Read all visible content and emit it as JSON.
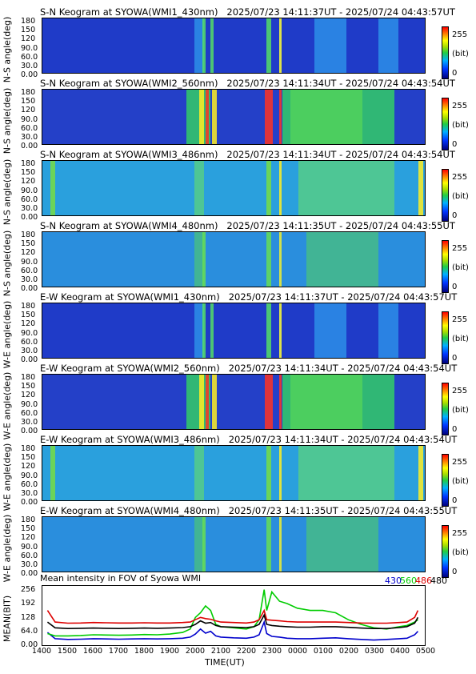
{
  "keograms": [
    {
      "title": "S-N Keogram at SYOWA(WMI1_430nm)",
      "time_range": "2025/07/23 14:11:37UT - 2025/07/24 04:43:57UT",
      "ylabel": "N-S angle(deg)",
      "variant": "blue"
    },
    {
      "title": "S-N Keogram at SYOWA(WMI2_560nm)",
      "time_range": "2025/07/23 14:11:34UT - 2025/07/24 04:43:54UT",
      "ylabel": "N-S angle(deg)",
      "variant": "bright"
    },
    {
      "title": "S-N Keogram at SYOWA(WMI3_486nm)",
      "time_range": "2025/07/23 14:11:34UT - 2025/07/24 04:43:54UT",
      "ylabel": "N-S angle(deg)",
      "variant": "cyan"
    },
    {
      "title": "S-N Keogram at SYOWA(WMI4_480nm)",
      "time_range": "2025/07/23 14:11:35UT - 2025/07/24 04:43:55UT",
      "ylabel": "N-S angle(deg)",
      "variant": "teal"
    },
    {
      "title": "E-W Keogram at SYOWA(WMI1_430nm)",
      "time_range": "2025/07/23 14:11:37UT - 2025/07/24 04:43:57UT",
      "ylabel": "W-E angle(deg)",
      "variant": "blue"
    },
    {
      "title": "E-W Keogram at SYOWA(WMI2_560nm)",
      "time_range": "2025/07/23 14:11:34UT - 2025/07/24 04:43:54UT",
      "ylabel": "W-E angle(deg)",
      "variant": "bright"
    },
    {
      "title": "E-W Keogram at SYOWA(WMI3_486nm)",
      "time_range": "2025/07/23 14:11:34UT - 2025/07/24 04:43:54UT",
      "ylabel": "W-E angle(deg)",
      "variant": "cyan"
    },
    {
      "title": "E-W Keogram at SYOWA(WMI4_480nm)",
      "time_range": "2025/07/23 14:11:35UT - 2025/07/24 04:43:55UT",
      "ylabel": "W-E angle(deg)",
      "variant": "teal"
    }
  ],
  "angle_ticks": [
    "180",
    "150",
    "120",
    "90.0",
    "60.0",
    "30.0",
    "0.00"
  ],
  "colorbar": {
    "max": "255",
    "unit": "(bit)",
    "min": "0"
  },
  "mean_panel": {
    "title": "Mean intensity in FOV of Syowa WMI",
    "legend": [
      {
        "label": "430",
        "color": "#0000cc"
      },
      {
        "label": "560",
        "color": "#00cc00"
      },
      {
        "label": "486",
        "color": "#dd0000"
      },
      {
        "label": "480",
        "color": "#000000"
      }
    ],
    "ylabel": "MEAN(BIT)",
    "xlabel": "TIME(UT)"
  },
  "chart_data": {
    "type": "line",
    "title": "Mean intensity in FOV of Syowa WMI",
    "xlabel": "TIME(UT)",
    "ylabel": "MEAN(BIT)",
    "x_ticks": [
      "1400",
      "1500",
      "1600",
      "1700",
      "1800",
      "1900",
      "2000",
      "2100",
      "2200",
      "2300",
      "0000",
      "0100",
      "0200",
      "0300",
      "0400",
      "0500"
    ],
    "y_ticks": [
      "256",
      "192",
      "128",
      "64.0",
      "0.00"
    ],
    "ylim": [
      0,
      256
    ],
    "x_hours": [
      14.2,
      14.5,
      15,
      15.5,
      16,
      16.5,
      17,
      17.5,
      18,
      18.5,
      19,
      19.5,
      19.8,
      20,
      20.2,
      20.4,
      20.6,
      20.8,
      21,
      21.5,
      22,
      22.3,
      22.5,
      22.7,
      22.8,
      23,
      23.3,
      23.6,
      24,
      24.5,
      25,
      25.5,
      26,
      26.5,
      27,
      27.5,
      28,
      28.3,
      28.6,
      28.73
    ],
    "series": [
      {
        "name": "430",
        "color": "#0000cc",
        "values": [
          55,
          28,
          25,
          26,
          28,
          27,
          26,
          27,
          28,
          27,
          28,
          30,
          35,
          48,
          70,
          52,
          60,
          40,
          35,
          32,
          30,
          35,
          45,
          100,
          50,
          38,
          35,
          30,
          28,
          28,
          30,
          32,
          28,
          25,
          22,
          25,
          28,
          30,
          45,
          60
        ]
      },
      {
        "name": "560",
        "color": "#00cc00",
        "values": [
          50,
          40,
          40,
          42,
          45,
          44,
          43,
          44,
          46,
          45,
          48,
          55,
          70,
          120,
          140,
          170,
          150,
          90,
          80,
          75,
          70,
          80,
          110,
          240,
          150,
          230,
          190,
          180,
          160,
          150,
          150,
          140,
          110,
          90,
          75,
          70,
          80,
          85,
          100,
          110
        ]
      },
      {
        "name": "486",
        "color": "#dd0000",
        "values": [
          150,
          100,
          95,
          96,
          98,
          97,
          96,
          96,
          97,
          96,
          96,
          98,
          100,
          110,
          120,
          115,
          112,
          105,
          100,
          98,
          96,
          100,
          110,
          150,
          110,
          108,
          105,
          102,
          100,
          100,
          100,
          100,
          98,
          96,
          95,
          95,
          98,
          100,
          120,
          150
        ]
      },
      {
        "name": "480",
        "color": "#000000",
        "values": [
          100,
          75,
          72,
          73,
          74,
          73,
          72,
          73,
          74,
          73,
          74,
          76,
          80,
          90,
          105,
          95,
          98,
          85,
          80,
          78,
          76,
          80,
          90,
          130,
          90,
          85,
          82,
          80,
          78,
          78,
          80,
          80,
          77,
          74,
          72,
          72,
          76,
          80,
          95,
          120
        ]
      }
    ]
  }
}
